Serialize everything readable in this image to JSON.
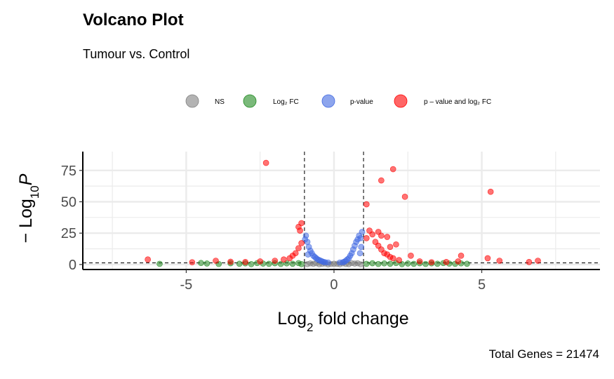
{
  "title": "Volcano Plot",
  "subtitle": "Tumour vs. Control",
  "caption": "Total Genes = 21474",
  "chart_data": {
    "type": "scatter",
    "xlabel_parts": {
      "main": "Log",
      "sub": "2",
      "rest": " fold change"
    },
    "ylabel_parts": {
      "prefix": "− Log",
      "sub": "10",
      "italic": "P"
    },
    "xlim": [
      -8.5,
      9
    ],
    "ylim": [
      -4,
      90
    ],
    "x_ticks": [
      -5,
      0,
      5
    ],
    "x_tick_labels": [
      "-5",
      "0",
      "5"
    ],
    "y_ticks": [
      0,
      25,
      50,
      75
    ],
    "y_tick_labels": [
      "0",
      "25",
      "50",
      "75"
    ],
    "grid": true,
    "fc_cutoff": 1,
    "p_cutoff_log10": 1.3,
    "legend_position": "top",
    "legend": [
      {
        "key": "ns",
        "label": "NS",
        "color": "#808080"
      },
      {
        "key": "fc",
        "label": "Log₂ FC",
        "color": "#228b22"
      },
      {
        "key": "p",
        "label": "p-value",
        "color": "#4169e1"
      },
      {
        "key": "both",
        "label": "p – value and log₂ FC",
        "color": "#ff0000"
      }
    ],
    "series": [
      {
        "key": "ns",
        "points": [
          [
            -0.9,
            0.3
          ],
          [
            -0.7,
            0.6
          ],
          [
            -0.5,
            0.2
          ],
          [
            -0.3,
            0.8
          ],
          [
            -0.1,
            0.4
          ],
          [
            0.1,
            0.5
          ],
          [
            0.3,
            0.9
          ],
          [
            0.5,
            0.3
          ],
          [
            0.7,
            0.7
          ],
          [
            0.9,
            0.2
          ],
          [
            -0.6,
            1.0
          ],
          [
            0.6,
            1.1
          ],
          [
            -0.2,
            0.1
          ],
          [
            0.2,
            0.2
          ],
          [
            -0.8,
            0.9
          ],
          [
            0.8,
            1.0
          ],
          [
            0.0,
            0.6
          ],
          [
            -0.4,
            0.5
          ],
          [
            0.4,
            0.4
          ]
        ]
      },
      {
        "key": "fc",
        "points": [
          [
            -5.9,
            0.5
          ],
          [
            -4.5,
            1.2
          ],
          [
            -4.3,
            0.8
          ],
          [
            -3.9,
            0.4
          ],
          [
            -3.5,
            1.0
          ],
          [
            -3.2,
            0.6
          ],
          [
            -3.0,
            0.9
          ],
          [
            -2.8,
            0.3
          ],
          [
            -2.6,
            1.1
          ],
          [
            -2.4,
            0.7
          ],
          [
            -2.2,
            0.5
          ],
          [
            -2.0,
            1.0
          ],
          [
            -1.8,
            0.4
          ],
          [
            -1.6,
            0.9
          ],
          [
            -1.4,
            0.6
          ],
          [
            -1.2,
            1.1
          ],
          [
            -1.1,
            0.3
          ],
          [
            1.1,
            0.5
          ],
          [
            1.3,
            1.0
          ],
          [
            1.5,
            0.4
          ],
          [
            1.7,
            0.9
          ],
          [
            1.9,
            0.6
          ],
          [
            2.1,
            1.1
          ],
          [
            2.3,
            0.3
          ],
          [
            2.5,
            0.8
          ],
          [
            2.7,
            0.5
          ],
          [
            2.9,
            1.0
          ],
          [
            3.1,
            0.4
          ],
          [
            3.3,
            0.9
          ],
          [
            3.5,
            0.6
          ],
          [
            3.7,
            1.1
          ],
          [
            3.9,
            0.7
          ],
          [
            4.1,
            0.5
          ],
          [
            4.3,
            0.9
          ],
          [
            4.5,
            0.6
          ]
        ]
      },
      {
        "key": "p",
        "points": [
          [
            -0.95,
            23
          ],
          [
            -0.9,
            18
          ],
          [
            -0.85,
            14
          ],
          [
            -0.8,
            11
          ],
          [
            -0.75,
            9
          ],
          [
            -0.7,
            7
          ],
          [
            -0.65,
            6
          ],
          [
            -0.6,
            5
          ],
          [
            -0.55,
            4
          ],
          [
            -0.5,
            3.5
          ],
          [
            -0.45,
            3
          ],
          [
            -0.4,
            2.5
          ],
          [
            -0.35,
            2
          ],
          [
            -0.3,
            1.8
          ],
          [
            -0.2,
            1.6
          ],
          [
            0.2,
            1.6
          ],
          [
            0.3,
            1.8
          ],
          [
            0.35,
            2.2
          ],
          [
            0.4,
            3
          ],
          [
            0.45,
            4
          ],
          [
            0.5,
            5
          ],
          [
            0.55,
            7
          ],
          [
            0.6,
            9
          ],
          [
            0.65,
            12
          ],
          [
            0.7,
            15
          ],
          [
            0.75,
            18
          ],
          [
            0.8,
            20
          ],
          [
            0.85,
            23
          ],
          [
            0.9,
            21
          ],
          [
            0.95,
            26
          ],
          [
            -0.98,
            20
          ],
          [
            0.92,
            14
          ],
          [
            -0.88,
            8
          ],
          [
            0.88,
            9
          ]
        ]
      },
      {
        "key": "both",
        "points": [
          [
            -2.3,
            81
          ],
          [
            -1.2,
            30
          ],
          [
            -1.1,
            33
          ],
          [
            -1.15,
            27
          ],
          [
            -1.1,
            17
          ],
          [
            -1.2,
            13
          ],
          [
            -1.3,
            9
          ],
          [
            -1.4,
            7
          ],
          [
            -1.5,
            5
          ],
          [
            -1.7,
            4
          ],
          [
            -2.0,
            3
          ],
          [
            -2.5,
            2.5
          ],
          [
            -3.0,
            2
          ],
          [
            -3.5,
            2.2
          ],
          [
            -4.0,
            3
          ],
          [
            -4.8,
            1.8
          ],
          [
            -6.3,
            4
          ],
          [
            1.1,
            21
          ],
          [
            1.2,
            27
          ],
          [
            1.3,
            24
          ],
          [
            1.5,
            26
          ],
          [
            1.6,
            23
          ],
          [
            1.4,
            18
          ],
          [
            1.5,
            15
          ],
          [
            1.6,
            12
          ],
          [
            1.7,
            9
          ],
          [
            1.8,
            8
          ],
          [
            1.9,
            6
          ],
          [
            2.0,
            5
          ],
          [
            2.2,
            3.5
          ],
          [
            2.6,
            7
          ],
          [
            1.8,
            22
          ],
          [
            1.9,
            14
          ],
          [
            2.1,
            16
          ],
          [
            1.1,
            48
          ],
          [
            1.6,
            67
          ],
          [
            2.0,
            76
          ],
          [
            2.4,
            54
          ],
          [
            5.3,
            58
          ],
          [
            5.2,
            5
          ],
          [
            5.6,
            3
          ],
          [
            6.6,
            2
          ],
          [
            6.9,
            3
          ],
          [
            4.3,
            7
          ],
          [
            3.8,
            2
          ],
          [
            2.9,
            2.5
          ],
          [
            3.3,
            1.8
          ],
          [
            4.2,
            2.5
          ]
        ]
      }
    ]
  }
}
